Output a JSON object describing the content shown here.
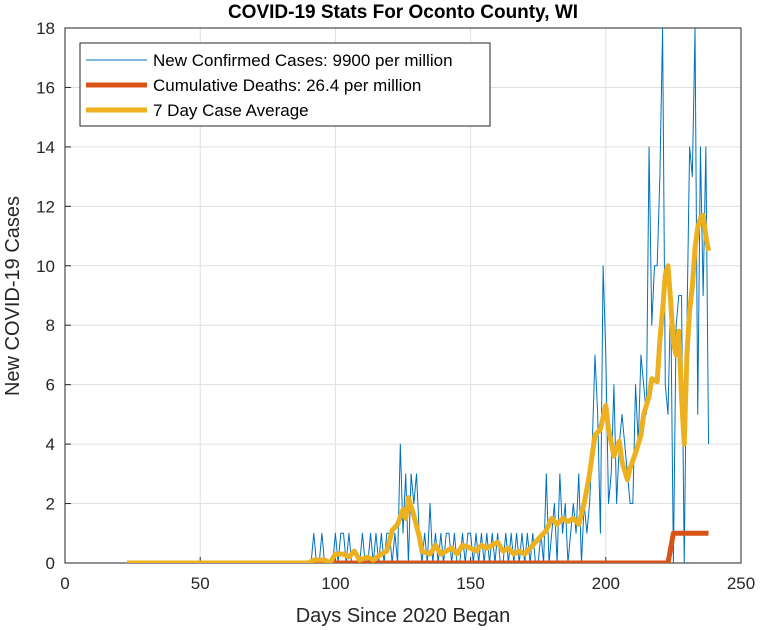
{
  "chart_data": {
    "type": "line",
    "title": "COVID-19 Stats For Oconto County, WI",
    "xlabel": "Days Since 2020 Began",
    "ylabel": "New COVID-19 Cases",
    "xlim": [
      0,
      250
    ],
    "ylim": [
      0,
      18
    ],
    "xticks": [
      0,
      50,
      100,
      150,
      200,
      250
    ],
    "yticks": [
      0,
      2,
      4,
      6,
      8,
      10,
      12,
      14,
      16,
      18
    ],
    "grid": true,
    "legend_position": "top-left",
    "series": [
      {
        "name": "New Confirmed Cases: 9900 per million",
        "color": "#0072BD",
        "width": 1,
        "x_start": 23,
        "values": [
          0,
          0,
          0,
          0,
          0,
          0,
          0,
          0,
          0,
          0,
          0,
          0,
          0,
          0,
          0,
          0,
          0,
          0,
          0,
          0,
          0,
          0,
          0,
          0,
          0,
          0,
          0,
          0,
          0,
          0,
          0,
          0,
          0,
          0,
          0,
          0,
          0,
          0,
          0,
          0,
          0,
          0,
          0,
          0,
          0,
          0,
          0,
          0,
          0,
          0,
          0,
          0,
          0,
          0,
          0,
          0,
          0,
          0,
          0,
          0,
          0,
          0,
          0,
          0,
          0,
          0,
          0,
          0,
          0,
          1,
          0,
          0,
          1,
          0,
          0,
          0,
          0,
          1,
          0,
          1,
          1,
          0,
          1,
          0,
          0,
          0,
          0,
          1,
          0,
          0,
          1,
          0,
          1,
          0,
          1,
          0,
          1,
          1,
          0,
          1,
          0,
          4,
          1,
          3,
          0,
          3,
          2,
          3,
          1,
          0,
          1,
          0,
          2,
          0,
          1,
          0,
          1,
          0,
          1,
          1,
          0,
          1,
          0,
          0,
          1,
          0,
          1,
          1,
          0,
          1,
          0,
          1,
          0,
          1,
          0,
          1,
          0,
          1,
          0,
          0,
          1,
          0,
          1,
          0,
          1,
          0,
          1,
          0,
          1,
          0,
          1,
          0,
          0,
          1,
          0,
          3,
          0,
          1,
          2,
          0,
          3,
          1,
          2,
          0,
          1,
          2,
          1,
          3,
          0,
          2,
          1,
          2,
          4,
          7,
          5,
          1,
          10,
          7,
          2,
          3,
          6,
          2,
          4,
          5,
          4,
          3,
          2,
          2,
          6,
          4,
          7,
          6,
          5,
          14,
          8,
          10,
          10,
          13,
          18,
          6,
          5,
          9,
          0,
          8,
          9,
          9,
          0,
          8,
          14,
          13,
          18,
          5,
          14,
          9,
          14,
          4
        ],
        "values_note_hidden": ""
      },
      {
        "name": "Cumulative Deaths: 26.4 per million",
        "color": "#D95319",
        "width": 5,
        "points": [
          [
            23,
            0
          ],
          [
            223,
            0
          ],
          [
            225,
            1
          ],
          [
            238,
            1
          ]
        ]
      },
      {
        "name": "7 Day Case Average",
        "color": "#EDB120",
        "width": 5,
        "points": [
          [
            23,
            0
          ],
          [
            90,
            0
          ],
          [
            92,
            0.1
          ],
          [
            96,
            0.1
          ],
          [
            98,
            0
          ],
          [
            100,
            0.3
          ],
          [
            103,
            0.3
          ],
          [
            105,
            0.2
          ],
          [
            107,
            0.4
          ],
          [
            109,
            0.1
          ],
          [
            112,
            0.2
          ],
          [
            114,
            0.1
          ],
          [
            117,
            0.3
          ],
          [
            119,
            0.4
          ],
          [
            121,
            1.1
          ],
          [
            123,
            1.3
          ],
          [
            125,
            1.8
          ],
          [
            126,
            1.5
          ],
          [
            127,
            2.2
          ],
          [
            129,
            1.6
          ],
          [
            131,
            0.9
          ],
          [
            132,
            0.4
          ],
          [
            135,
            0.3
          ],
          [
            137,
            0.6
          ],
          [
            139,
            0.3
          ],
          [
            141,
            0.4
          ],
          [
            143,
            0.5
          ],
          [
            145,
            0.3
          ],
          [
            147,
            0.6
          ],
          [
            150,
            0.5
          ],
          [
            152,
            0.4
          ],
          [
            154,
            0.6
          ],
          [
            156,
            0.5
          ],
          [
            158,
            0.6
          ],
          [
            160,
            0.7
          ],
          [
            162,
            0.4
          ],
          [
            164,
            0.5
          ],
          [
            166,
            0.3
          ],
          [
            168,
            0.4
          ],
          [
            170,
            0.3
          ],
          [
            172,
            0.5
          ],
          [
            174,
            0.7
          ],
          [
            176,
            0.9
          ],
          [
            178,
            1.1
          ],
          [
            180,
            1.5
          ],
          [
            182,
            1.3
          ],
          [
            184,
            1.5
          ],
          [
            186,
            1.4
          ],
          [
            188,
            1.5
          ],
          [
            190,
            1.3
          ],
          [
            192,
            2.0
          ],
          [
            194,
            3.0
          ],
          [
            196,
            4.3
          ],
          [
            198,
            4.5
          ],
          [
            200,
            5.3
          ],
          [
            201,
            4.5
          ],
          [
            203,
            3.6
          ],
          [
            205,
            4.1
          ],
          [
            206,
            3.4
          ],
          [
            208,
            2.8
          ],
          [
            209,
            3.2
          ],
          [
            211,
            3.7
          ],
          [
            213,
            4.3
          ],
          [
            214,
            5.0
          ],
          [
            216,
            5.6
          ],
          [
            217,
            6.2
          ],
          [
            219,
            6.1
          ],
          [
            220,
            7.5
          ],
          [
            221,
            8.5
          ],
          [
            222,
            9.7
          ],
          [
            223,
            10.0
          ],
          [
            224,
            8.8
          ],
          [
            225,
            7.4
          ],
          [
            226,
            7.0
          ],
          [
            227,
            7.8
          ],
          [
            228,
            5.6
          ],
          [
            229,
            4.0
          ],
          [
            230,
            7.0
          ],
          [
            231,
            8.5
          ],
          [
            232,
            9.3
          ],
          [
            233,
            10.6
          ],
          [
            234,
            11.3
          ],
          [
            235,
            11.6
          ],
          [
            236,
            11.7
          ],
          [
            237,
            11.0
          ],
          [
            238,
            10.5
          ]
        ]
      }
    ]
  }
}
